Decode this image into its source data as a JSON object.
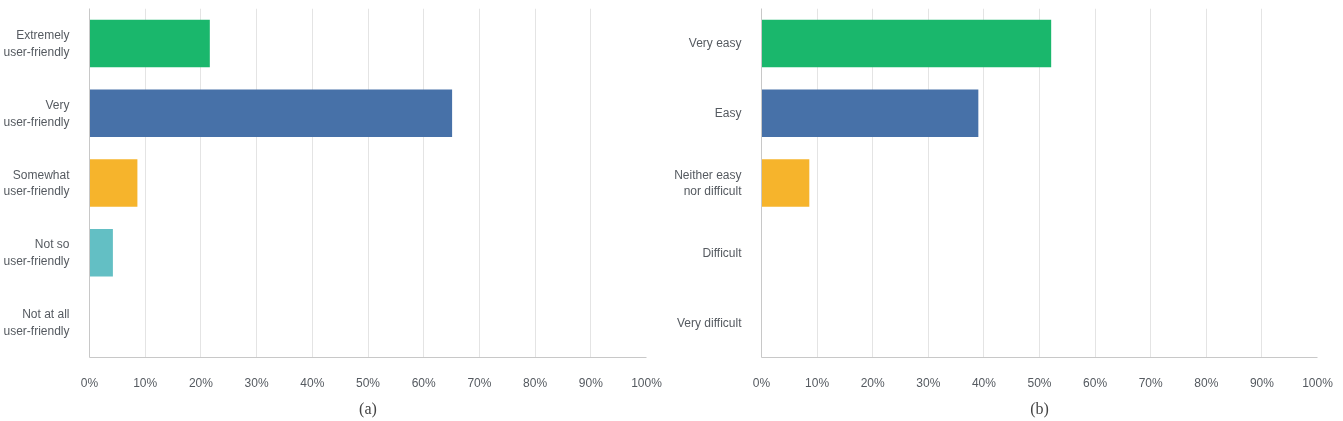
{
  "chart_data": [
    {
      "type": "bar",
      "orientation": "horizontal",
      "categories": [
        "Extremely\nuser-friendly",
        "Very\nuser-friendly",
        "Somewhat\nuser-friendly",
        "Not so\nuser-friendly",
        "Not at all\nuser-friendly"
      ],
      "values": [
        21.6,
        65.1,
        8.6,
        4.2,
        0
      ],
      "colors": [
        "#1ab76c",
        "#4771a8",
        "#f6b42c",
        "#63bfc4",
        null
      ],
      "xlim": [
        0,
        100
      ],
      "xticks": [
        {
          "value": 0,
          "label": "0%"
        },
        {
          "value": 10,
          "label": "10%"
        },
        {
          "value": 20,
          "label": "20%"
        },
        {
          "value": 30,
          "label": "30%"
        },
        {
          "value": 40,
          "label": "40%"
        },
        {
          "value": 50,
          "label": "50%"
        },
        {
          "value": 60,
          "label": "60%"
        },
        {
          "value": 70,
          "label": "70%"
        },
        {
          "value": 80,
          "label": "80%"
        },
        {
          "value": 90,
          "label": "90%"
        },
        {
          "value": 100,
          "label": "100%"
        }
      ],
      "grid": "x",
      "annotations": [
        "(a)"
      ]
    },
    {
      "type": "bar",
      "orientation": "horizontal",
      "categories": [
        "Very easy",
        "Easy",
        "Neither easy\nnor difficult",
        "Difficult",
        "Very difficult"
      ],
      "values": [
        52.1,
        39.0,
        8.6,
        0,
        0
      ],
      "colors": [
        "#1ab76c",
        "#4771a8",
        "#f6b42c",
        null,
        null
      ],
      "xlim": [
        0,
        100
      ],
      "xticks": [
        {
          "value": 0,
          "label": "0%"
        },
        {
          "value": 10,
          "label": "10%"
        },
        {
          "value": 20,
          "label": "20%"
        },
        {
          "value": 30,
          "label": "30%"
        },
        {
          "value": 40,
          "label": "40%"
        },
        {
          "value": 50,
          "label": "50%"
        },
        {
          "value": 60,
          "label": "60%"
        },
        {
          "value": 70,
          "label": "70%"
        },
        {
          "value": 80,
          "label": "80%"
        },
        {
          "value": 90,
          "label": "90%"
        },
        {
          "value": 100,
          "label": "100%"
        }
      ],
      "grid": "x",
      "annotations": [
        "(b)"
      ]
    }
  ]
}
